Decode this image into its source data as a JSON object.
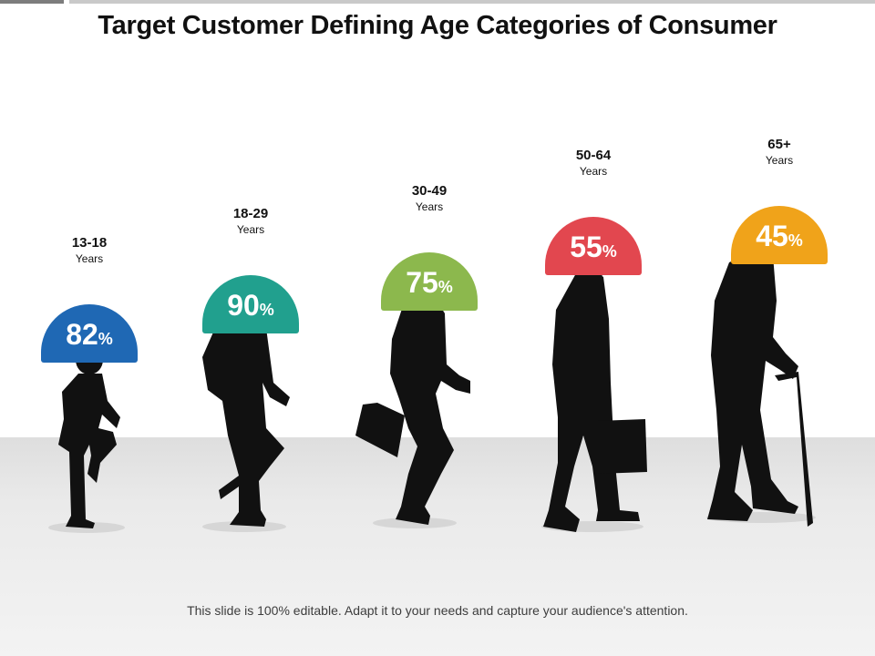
{
  "title": "Target Customer Defining Age Categories of Consumer",
  "footer": "This slide is 100% editable. Adapt it to your needs and capture your audience's attention.",
  "chart_data": {
    "type": "bar",
    "categories": [
      "13-18",
      "18-29",
      "30-49",
      "50-64",
      "65+"
    ],
    "values": [
      82,
      90,
      75,
      55,
      45
    ],
    "unit_label": "Years",
    "value_suffix": "%",
    "colors": [
      "#1f68b4",
      "#21a08e",
      "#8cb84d",
      "#e2474f",
      "#f0a31a"
    ]
  },
  "categories": [
    {
      "range": "13-18",
      "unit": "Years",
      "value": "82",
      "suffix": "%",
      "color": "#1f68b4"
    },
    {
      "range": "18-29",
      "unit": "Years",
      "value": "90",
      "suffix": "%",
      "color": "#21a08e"
    },
    {
      "range": "30-49",
      "unit": "Years",
      "value": "75",
      "suffix": "%",
      "color": "#8cb84d"
    },
    {
      "range": "50-64",
      "unit": "Years",
      "value": "55",
      "suffix": "%",
      "color": "#e2474f"
    },
    {
      "range": "65+",
      "unit": "Years",
      "value": "45",
      "suffix": "%",
      "color": "#f0a31a"
    }
  ],
  "figures": [
    "boy-silhouette",
    "young-man-backpack-silhouette",
    "adult-briefcase-silhouette",
    "older-man-bag-silhouette",
    "elderly-man-cane-silhouette"
  ]
}
